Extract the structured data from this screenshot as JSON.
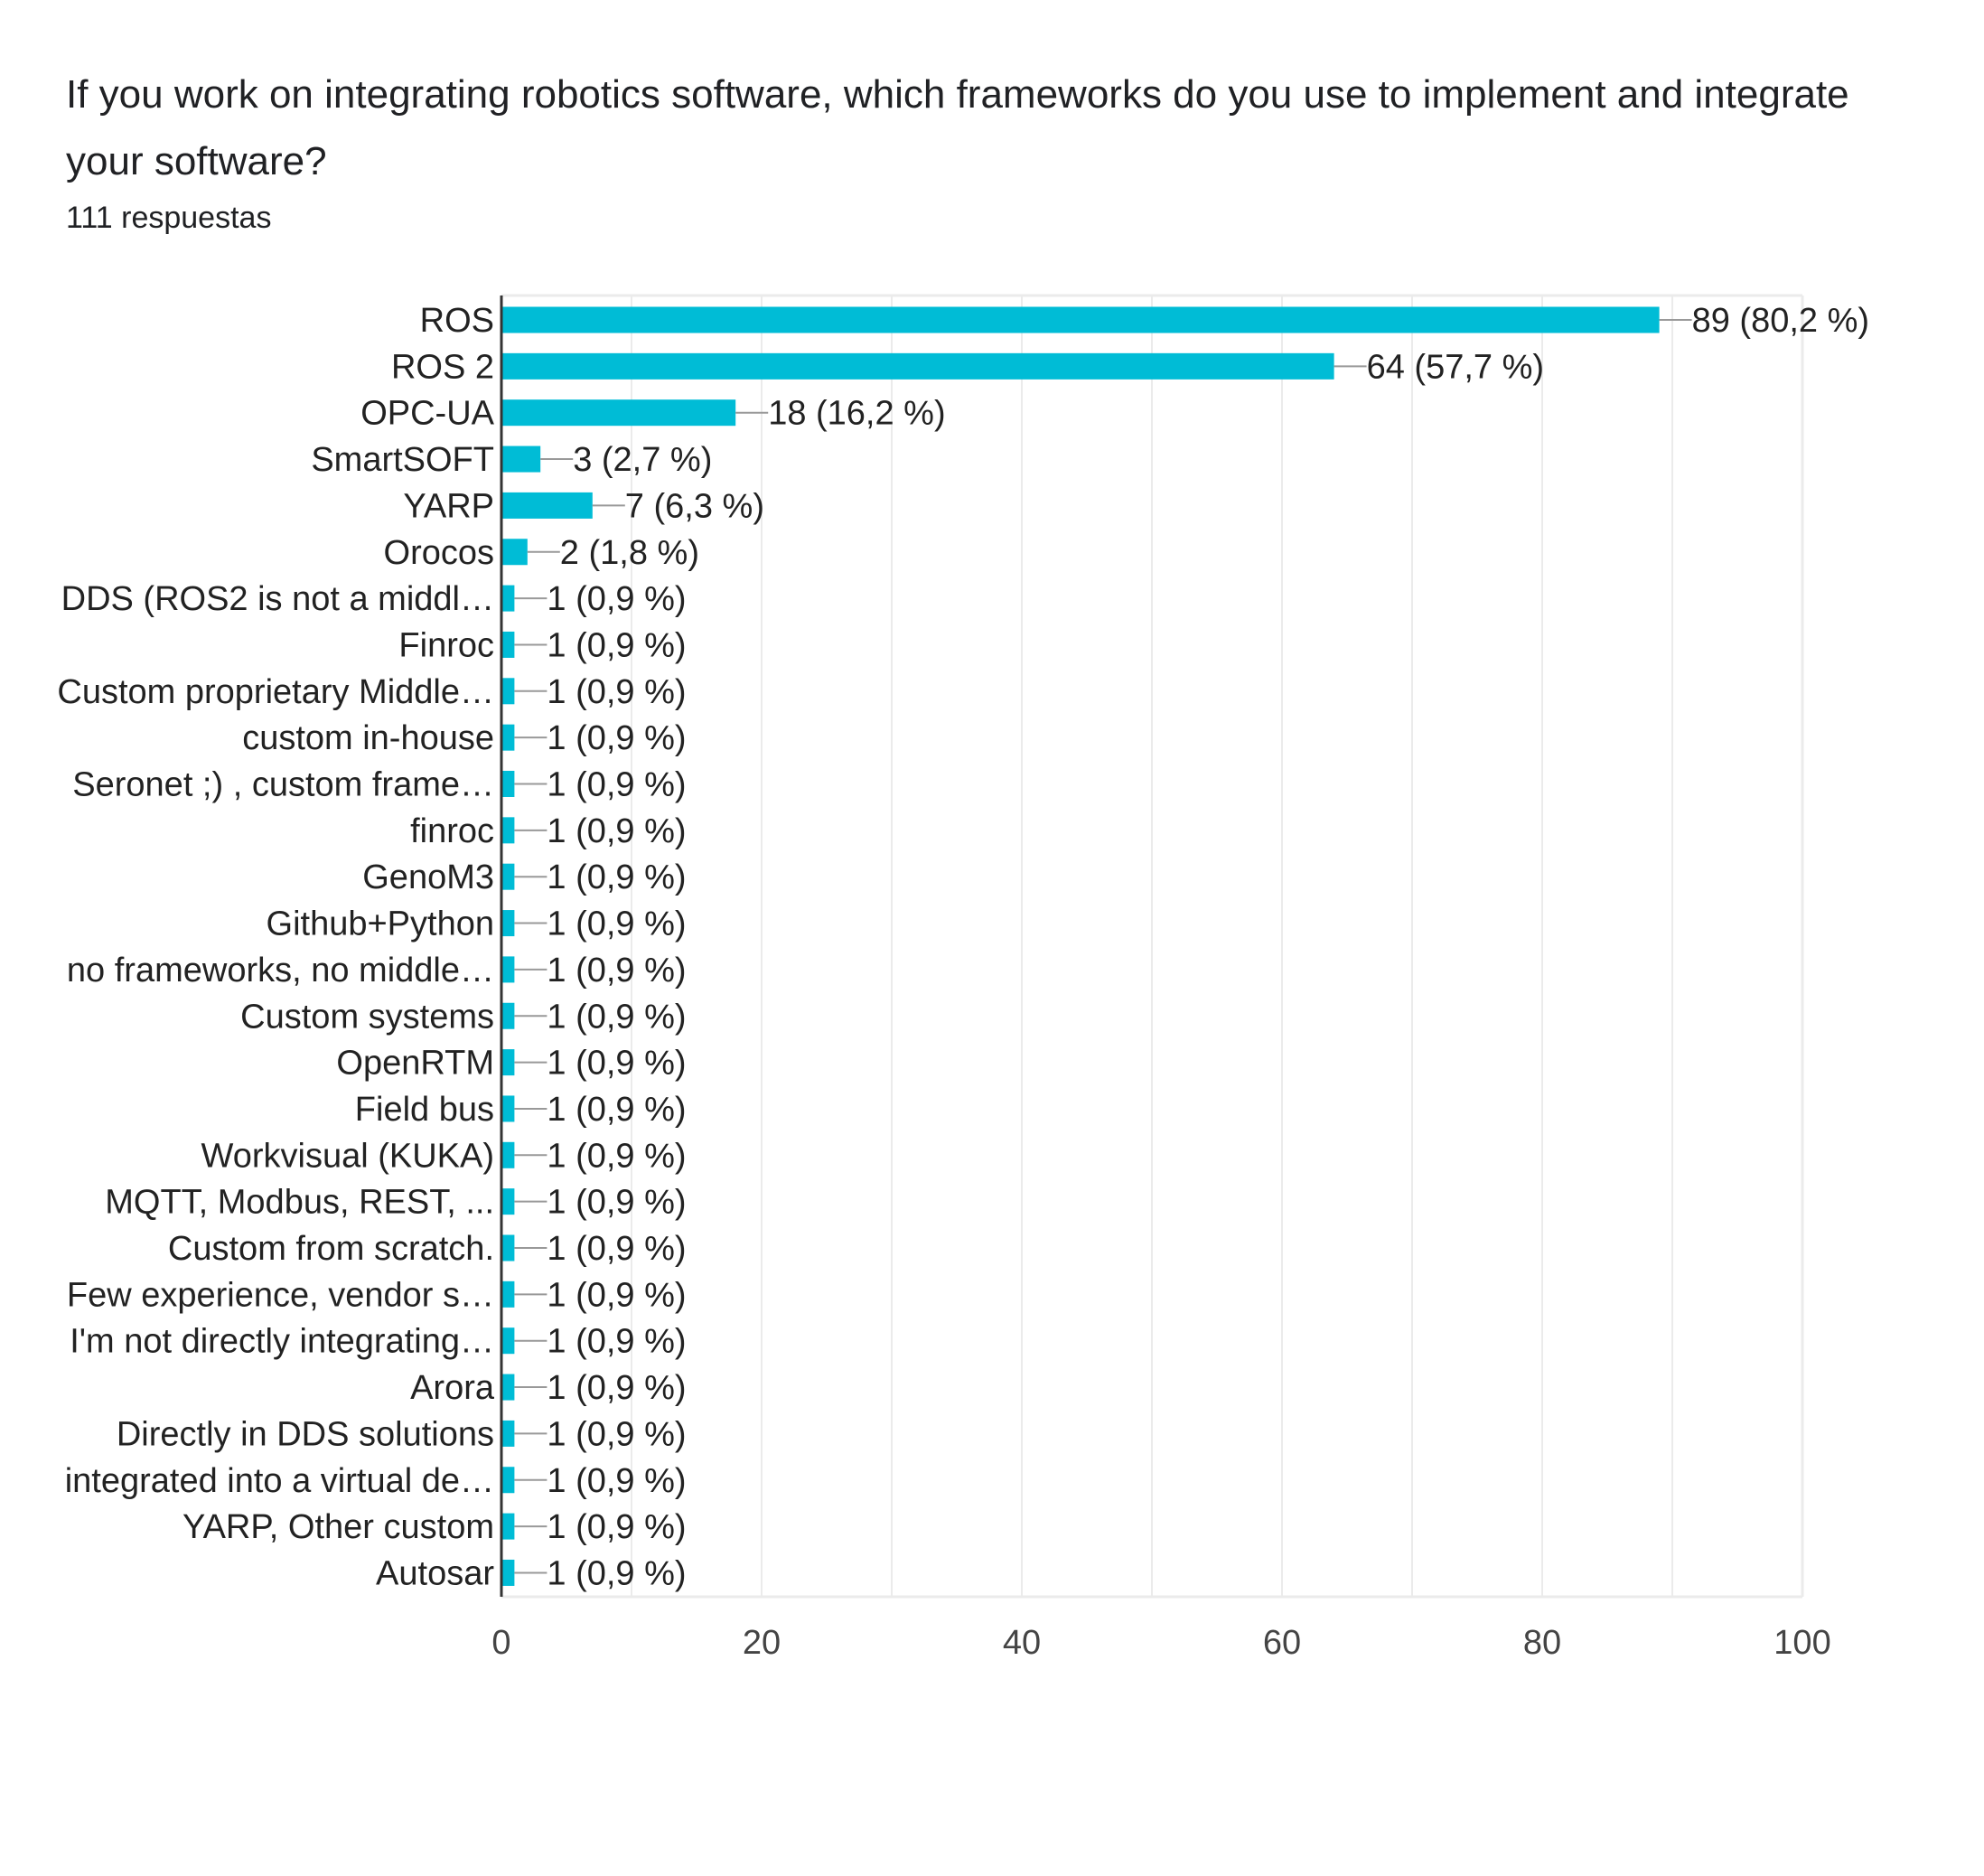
{
  "title": "If you work on integrating robotics software, which frameworks do you use to implement and integrate your software?",
  "subtitle": "111 respuestas",
  "colors": {
    "bar": "#00bcd6",
    "grid": "#ebebeb",
    "axis": "#333333",
    "leader": "#999999",
    "text": "#222222",
    "tick_text": "#444444"
  },
  "chart_data": {
    "type": "bar",
    "orientation": "horizontal",
    "categories": [
      "ROS",
      "ROS 2",
      "OPC-UA",
      "SmartSOFT",
      "YARP",
      "Orocos",
      "DDS (ROS2 is not a middl…",
      "Finroc",
      "Custom proprietary Middle…",
      "custom in-house",
      "Seronet ;) , custom frame…",
      "finroc",
      "GenoM3",
      "Github+Python",
      "no frameworks, no middle…",
      "Custom systems",
      "OpenRTM",
      "Field bus",
      "Workvisual (KUKA)",
      "MQTT, Modbus, REST, ...",
      "Custom from scratch.",
      "Few experience, vendor s…",
      "I'm not directly integrating…",
      "Arora",
      "Directly in DDS solutions",
      "integrated into a virtual de…",
      "YARP, Other custom",
      "Autosar"
    ],
    "values": [
      89,
      64,
      18,
      3,
      7,
      2,
      1,
      1,
      1,
      1,
      1,
      1,
      1,
      1,
      1,
      1,
      1,
      1,
      1,
      1,
      1,
      1,
      1,
      1,
      1,
      1,
      1,
      1
    ],
    "data_labels": [
      "89 (80,2 %)",
      "64 (57,7 %)",
      "18 (16,2 %)",
      "3 (2,7 %)",
      "7 (6,3 %)",
      "2 (1,8 %)",
      "1 (0,9 %)",
      "1 (0,9 %)",
      "1 (0,9 %)",
      "1 (0,9 %)",
      "1 (0,9 %)",
      "1 (0,9 %)",
      "1 (0,9 %)",
      "1 (0,9 %)",
      "1 (0,9 %)",
      "1 (0,9 %)",
      "1 (0,9 %)",
      "1 (0,9 %)",
      "1 (0,9 %)",
      "1 (0,9 %)",
      "1 (0,9 %)",
      "1 (0,9 %)",
      "1 (0,9 %)",
      "1 (0,9 %)",
      "1 (0,9 %)",
      "1 (0,9 %)",
      "1 (0,9 %)",
      "1 (0,9 %)"
    ],
    "xlim": [
      0,
      100
    ],
    "xticks": [
      0,
      20,
      40,
      60,
      80,
      100
    ],
    "xtick_labels": [
      "0",
      "20",
      "40",
      "60",
      "80",
      "100"
    ],
    "grid": true,
    "legend": "none"
  }
}
